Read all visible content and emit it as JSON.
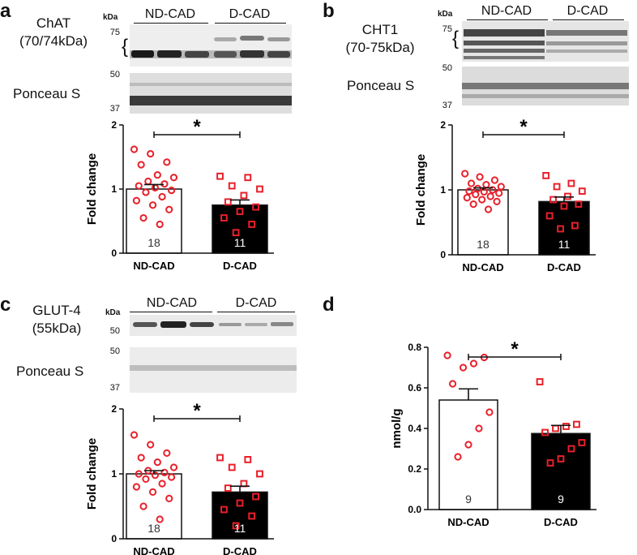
{
  "colors": {
    "marker": "#e8202a",
    "bar_dark": "#000000",
    "bar_light": "#ffffff",
    "axis": "#111111"
  },
  "panels": [
    {
      "label": "a",
      "protein_name": "ChAT",
      "protein_size": "(70/74kDa)",
      "loading_label": "Ponceau S",
      "kda_label": "kDa",
      "mw_top": [
        "75",
        "50"
      ],
      "mw_bottom": [
        "37"
      ],
      "groups": [
        "ND-CAD",
        "D-CAD"
      ]
    },
    {
      "label": "b",
      "protein_name": "CHT1",
      "protein_size": "(70-75kDa)",
      "loading_label": "Ponceau S",
      "kda_label": "kDa",
      "mw_top": [
        "75",
        "50"
      ],
      "mw_bottom": [
        "37"
      ],
      "groups": [
        "ND-CAD",
        "D-CAD"
      ]
    },
    {
      "label": "c",
      "protein_name": "GLUT-4",
      "protein_size": "(55kDa)",
      "loading_label": "Ponceau S",
      "kda_label": "kDa",
      "mw_top": [
        "50"
      ],
      "mw_bottom": [
        "50",
        "37"
      ],
      "groups": [
        "ND-CAD",
        "D-CAD"
      ]
    },
    {
      "label": "d"
    }
  ],
  "chart_data": [
    {
      "panel": "a",
      "type": "bar",
      "ylabel": "Fold change",
      "ylim": [
        0,
        2
      ],
      "yticks": [
        "0",
        "1",
        "2"
      ],
      "categories": [
        "ND-CAD",
        "D-CAD"
      ],
      "means": [
        1.0,
        0.75
      ],
      "sem": [
        0.07,
        0.08
      ],
      "n": [
        "18",
        "11"
      ],
      "significance": "*",
      "points": [
        [
          1.62,
          1.55,
          1.42,
          1.38,
          1.22,
          1.18,
          1.12,
          1.08,
          1.05,
          1.02,
          0.98,
          0.95,
          0.88,
          0.82,
          0.75,
          0.68,
          0.55,
          0.45
        ],
        [
          1.2,
          1.18,
          1.05,
          1.0,
          0.9,
          0.8,
          0.72,
          0.65,
          0.55,
          0.45,
          0.32
        ]
      ]
    },
    {
      "panel": "b",
      "type": "bar",
      "ylabel": "Fold change",
      "ylim": [
        0,
        2
      ],
      "yticks": [
        "0",
        "1",
        "2"
      ],
      "categories": [
        "ND-CAD",
        "D-CAD"
      ],
      "means": [
        1.0,
        0.82
      ],
      "sem": [
        0.03,
        0.07
      ],
      "n": [
        "18",
        "11"
      ],
      "significance": "*",
      "points": [
        [
          1.25,
          1.2,
          1.15,
          1.1,
          1.08,
          1.05,
          1.02,
          1.0,
          0.98,
          0.97,
          0.95,
          0.93,
          0.9,
          0.88,
          0.85,
          0.82,
          0.78,
          0.7
        ],
        [
          1.22,
          1.1,
          1.05,
          0.98,
          0.9,
          0.85,
          0.78,
          0.75,
          0.6,
          0.45,
          0.4
        ]
      ]
    },
    {
      "panel": "c",
      "type": "bar",
      "ylabel": "Fold change",
      "ylim": [
        0,
        2
      ],
      "yticks": [
        "0",
        "1",
        "2"
      ],
      "categories": [
        "ND-CAD",
        "D-CAD"
      ],
      "means": [
        1.0,
        0.72
      ],
      "sem": [
        0.05,
        0.09
      ],
      "n": [
        "18",
        "11"
      ],
      "significance": "*",
      "points": [
        [
          1.6,
          1.45,
          1.32,
          1.25,
          1.18,
          1.1,
          1.05,
          1.02,
          1.0,
          0.98,
          0.95,
          0.92,
          0.85,
          0.8,
          0.72,
          0.62,
          0.5,
          0.3
        ],
        [
          1.25,
          1.22,
          1.1,
          1.0,
          0.85,
          0.78,
          0.65,
          0.55,
          0.45,
          0.35,
          0.2
        ]
      ]
    },
    {
      "panel": "d",
      "type": "bar",
      "ylabel": "nmol/g",
      "ylim": [
        0,
        0.8
      ],
      "yticks": [
        "0.0",
        "0.2",
        "0.4",
        "0.6",
        "0.8"
      ],
      "categories": [
        "ND-CAD",
        "D-CAD"
      ],
      "means": [
        0.54,
        0.375
      ],
      "sem": [
        0.055,
        0.04
      ],
      "n": [
        "9",
        "9"
      ],
      "significance": "*",
      "points": [
        [
          0.76,
          0.75,
          0.72,
          0.7,
          0.62,
          0.48,
          0.4,
          0.32,
          0.26
        ],
        [
          0.63,
          0.42,
          0.41,
          0.4,
          0.38,
          0.33,
          0.3,
          0.25,
          0.23
        ]
      ]
    }
  ]
}
